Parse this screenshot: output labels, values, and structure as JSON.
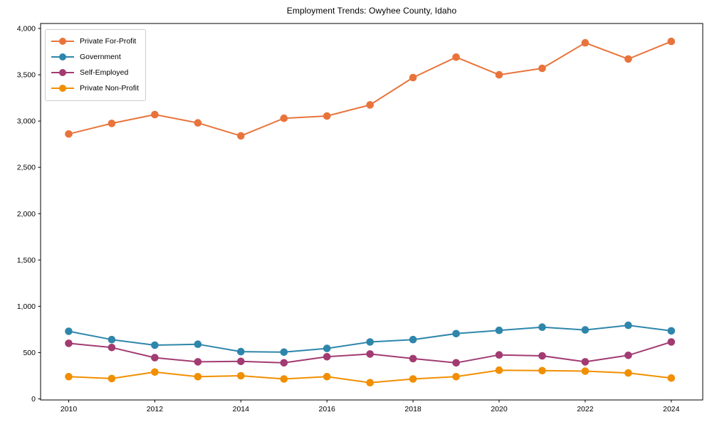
{
  "title": "Employment Trends: Owyhee County, Idaho",
  "chart_data": {
    "type": "line",
    "title": "Employment Trends: Owyhee County, Idaho",
    "xlabel": "",
    "ylabel": "",
    "x": [
      2010,
      2011,
      2012,
      2013,
      2014,
      2015,
      2016,
      2017,
      2018,
      2019,
      2020,
      2021,
      2022,
      2023,
      2024
    ],
    "series": [
      {
        "name": "Private For-Profit",
        "color": "#E8743B",
        "values": [
          2860,
          2975,
          3070,
          2980,
          2840,
          3030,
          3055,
          3175,
          3470,
          3690,
          3500,
          3570,
          3845,
          3670,
          3860
        ]
      },
      {
        "name": "Government",
        "color": "#2E86AB",
        "values": [
          730,
          640,
          580,
          590,
          510,
          505,
          545,
          615,
          640,
          705,
          740,
          775,
          745,
          795,
          735
        ]
      },
      {
        "name": "Self-Employed",
        "color": "#A23B72",
        "values": [
          600,
          555,
          445,
          400,
          405,
          390,
          455,
          485,
          435,
          390,
          475,
          465,
          400,
          470,
          615
        ]
      },
      {
        "name": "Private Non-Profit",
        "color": "#F18F01",
        "values": [
          240,
          220,
          290,
          240,
          250,
          215,
          240,
          175,
          215,
          240,
          310,
          305,
          300,
          280,
          225
        ]
      }
    ],
    "xticks": [
      2010,
      2012,
      2014,
      2016,
      2018,
      2020,
      2022,
      2024
    ],
    "yticks": [
      0,
      500,
      1000,
      1500,
      2000,
      2500,
      3000,
      3500,
      4000
    ],
    "ytick_labels": [
      "0",
      "500",
      "1,000",
      "1,500",
      "2,000",
      "2,500",
      "3,000",
      "3,500",
      "4,000"
    ],
    "ylim": [
      0,
      4000
    ],
    "grid": false,
    "legend_position": "upper-left"
  }
}
